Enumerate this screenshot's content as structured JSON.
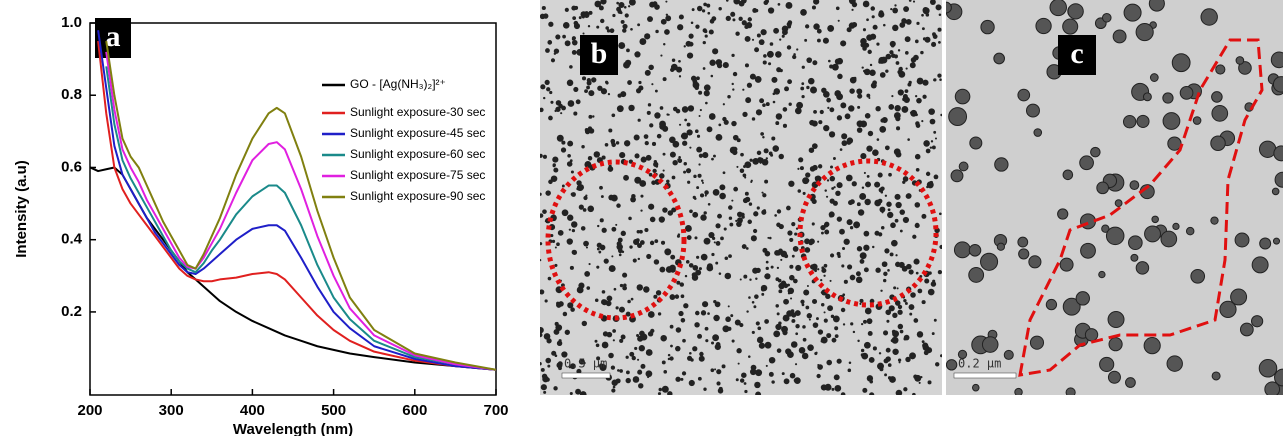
{
  "chart_data": {
    "type": "line",
    "panel_label": "a",
    "x_label": "Wavelength (nm)",
    "y_label": "Intensity (a.u)",
    "xlim": [
      200,
      700
    ],
    "xticks": [
      200,
      300,
      400,
      500,
      600,
      700
    ],
    "ylim": [
      -0.03,
      1.0
    ],
    "yticks": [
      0.2,
      0.4,
      0.6,
      0.8,
      {
        "value": 1,
        "label": "1.0"
      }
    ],
    "x": [
      200,
      210,
      220,
      230,
      240,
      250,
      260,
      270,
      280,
      290,
      300,
      310,
      320,
      330,
      340,
      350,
      360,
      380,
      400,
      420,
      430,
      440,
      460,
      480,
      500,
      520,
      550,
      600,
      650,
      700
    ],
    "series": [
      {
        "name": "GO - [Ag(NH₃)₂]²⁺",
        "color": "#000000",
        "values": [
          0.6,
          0.59,
          0.595,
          0.6,
          0.58,
          0.54,
          0.5,
          0.46,
          0.43,
          0.4,
          0.37,
          0.34,
          0.31,
          0.29,
          0.27,
          0.25,
          0.23,
          0.2,
          0.175,
          0.155,
          0.145,
          0.135,
          0.12,
          0.105,
          0.095,
          0.085,
          0.075,
          0.06,
          0.05,
          0.04
        ]
      },
      {
        "name": "Sunlight exposure-30 sec",
        "color": "#e0201f",
        "values": [
          null,
          0.95,
          0.75,
          0.6,
          0.54,
          0.5,
          0.47,
          0.44,
          0.41,
          0.38,
          0.35,
          0.32,
          0.3,
          0.29,
          0.285,
          0.285,
          0.29,
          0.295,
          0.305,
          0.31,
          0.305,
          0.29,
          0.24,
          0.19,
          0.15,
          0.12,
          0.09,
          0.065,
          0.05,
          0.04
        ]
      },
      {
        "name": "Sunlight exposure-45 sec",
        "color": "#1f1fc8",
        "values": [
          null,
          0.98,
          0.82,
          0.66,
          0.58,
          0.54,
          0.5,
          0.46,
          0.42,
          0.39,
          0.36,
          0.33,
          0.31,
          0.305,
          0.32,
          0.34,
          0.36,
          0.4,
          0.43,
          0.44,
          0.44,
          0.425,
          0.35,
          0.27,
          0.2,
          0.155,
          0.105,
          0.07,
          0.05,
          0.04
        ]
      },
      {
        "name": "Sunlight exposure-60 sec",
        "color": "#1a8a8a",
        "values": [
          null,
          null,
          0.88,
          0.72,
          0.62,
          0.57,
          0.53,
          0.49,
          0.45,
          0.41,
          0.37,
          0.34,
          0.32,
          0.31,
          0.335,
          0.37,
          0.4,
          0.47,
          0.52,
          0.55,
          0.55,
          0.53,
          0.44,
          0.33,
          0.24,
          0.18,
          0.12,
          0.075,
          0.055,
          0.04
        ]
      },
      {
        "name": "Sunlight exposure-75 sec",
        "color": "#e020e0",
        "values": [
          null,
          null,
          0.92,
          0.76,
          0.65,
          0.6,
          0.56,
          0.51,
          0.47,
          0.43,
          0.39,
          0.35,
          0.325,
          0.32,
          0.35,
          0.39,
          0.43,
          0.53,
          0.62,
          0.665,
          0.67,
          0.65,
          0.54,
          0.41,
          0.3,
          0.21,
          0.135,
          0.08,
          0.055,
          0.04
        ]
      },
      {
        "name": "Sunlight exposure-90 sec",
        "color": "#808010",
        "values": [
          null,
          null,
          0.95,
          0.8,
          0.68,
          0.63,
          0.6,
          0.55,
          0.5,
          0.45,
          0.41,
          0.37,
          0.33,
          0.32,
          0.36,
          0.41,
          0.46,
          0.58,
          0.68,
          0.75,
          0.765,
          0.75,
          0.63,
          0.48,
          0.35,
          0.24,
          0.15,
          0.085,
          0.06,
          0.04
        ]
      }
    ]
  },
  "images": [
    {
      "label": "b",
      "scale_bar": "0.5 µm"
    },
    {
      "label": "c",
      "scale_bar": "0.2 µm"
    }
  ]
}
